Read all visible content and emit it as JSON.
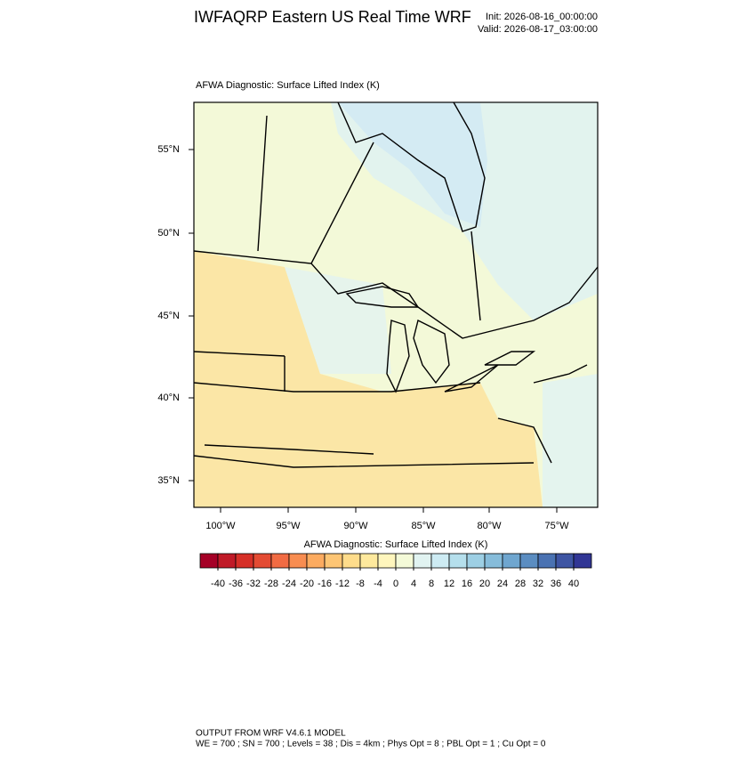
{
  "header": {
    "title": "IWFAQRP Eastern US Real Time WRF",
    "init": "Init: 2026-08-16_00:00:00",
    "valid": "Valid: 2026-08-17_03:00:00"
  },
  "map": {
    "title": "AFWA Diagnostic: Surface Lifted Index   (K)",
    "lat_labels": [
      "55°N",
      "50°N",
      "45°N",
      "40°N",
      "35°N"
    ],
    "lon_labels": [
      "100°W",
      "95°W",
      "90°W",
      "85°W",
      "80°W",
      "75°W"
    ]
  },
  "colorbar": {
    "title": "AFWA Diagnostic: Surface Lifted Index  (K)",
    "levels": [
      -40,
      -36,
      -32,
      -28,
      -24,
      -20,
      -16,
      -12,
      -8,
      -4,
      0,
      4,
      8,
      12,
      16,
      20,
      24,
      28,
      32,
      36,
      40
    ],
    "colors": [
      "#a50026",
      "#c01a27",
      "#d62f27",
      "#e44b33",
      "#f16b43",
      "#f88d51",
      "#fcab60",
      "#fdc574",
      "#fedc8b",
      "#fee99d",
      "#fff6bd",
      "#f4fad8",
      "#e1f3f1",
      "#cdebf3",
      "#b5dfec",
      "#9dcfe4",
      "#86bcda",
      "#6fa6cf",
      "#5b8dc1",
      "#4a72b2",
      "#3e55a3",
      "#313695"
    ]
  },
  "footer": {
    "line1": "OUTPUT FROM WRF V4.6.1 MODEL",
    "line2": "WE = 700 ; SN = 700 ; Levels = 38 ; Dis = 4km ; Phys Opt = 8 ; PBL Opt = 1 ; Cu Opt = 0"
  }
}
